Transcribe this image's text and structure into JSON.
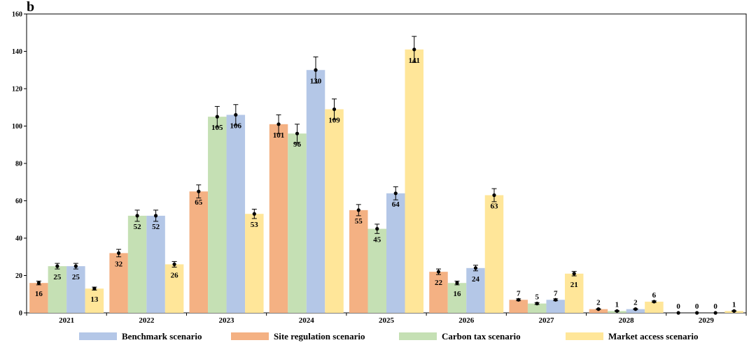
{
  "chart_data": {
    "type": "bar",
    "panel_label": "b",
    "categories": [
      "2021",
      "2022",
      "2023",
      "2024",
      "2025",
      "2026",
      "2027",
      "2028",
      "2029"
    ],
    "ylim": [
      0,
      160
    ],
    "yticks": [
      0,
      20,
      40,
      60,
      80,
      100,
      120,
      140,
      160
    ],
    "y_tick_labels": [
      "0",
      "20",
      "40",
      "60",
      "80",
      "100",
      "120",
      "140",
      "160"
    ],
    "grid": false,
    "legend_position": "bottom",
    "series": [
      {
        "name": "Site regulation scenario",
        "color": "#f4b183",
        "values": [
          16,
          32,
          65,
          101,
          55,
          22,
          7,
          2,
          0
        ],
        "labels": [
          "16",
          "32",
          "65",
          "101",
          "55",
          "22",
          "7",
          "2",
          "0"
        ],
        "errors": [
          1,
          2,
          3.5,
          5,
          3,
          1.5,
          0.5,
          0.2,
          0
        ]
      },
      {
        "name": "Carbon tax scenario",
        "color": "#c5e0b4",
        "values": [
          25,
          52,
          105,
          96,
          45,
          16,
          5,
          1,
          0
        ],
        "labels": [
          "25",
          "52",
          "105",
          "96",
          "45",
          "16",
          "5",
          "1",
          "0"
        ],
        "errors": [
          1.5,
          3,
          5.5,
          5,
          2.5,
          1,
          0.5,
          0.2,
          0
        ]
      },
      {
        "name": "Benchmark scenario",
        "color": "#b4c7e7",
        "values": [
          25,
          52,
          106,
          130,
          64,
          24,
          7,
          2,
          0
        ],
        "labels": [
          "25",
          "52",
          "106",
          "130",
          "64",
          "24",
          "7",
          "2",
          "0"
        ],
        "errors": [
          1.5,
          3,
          5.5,
          7,
          3.5,
          1.5,
          0.5,
          0.3,
          0
        ]
      },
      {
        "name": "Market access scenario",
        "color": "#ffe699",
        "values": [
          13,
          26,
          53,
          109,
          141,
          63,
          21,
          6,
          1
        ],
        "labels": [
          "13",
          "26",
          "53",
          "109",
          "141",
          "63",
          "21",
          "6",
          "1"
        ],
        "errors": [
          0.8,
          1.5,
          2.5,
          5.5,
          7,
          3.5,
          1.2,
          0.4,
          0.1
        ]
      }
    ],
    "legend": [
      {
        "name": "Benchmark scenario",
        "color": "#b4c7e7"
      },
      {
        "name": "Site regulation scenario",
        "color": "#f4b183"
      },
      {
        "name": "Carbon tax scenario",
        "color": "#c5e0b4"
      },
      {
        "name": "Market access scenario",
        "color": "#ffe699"
      }
    ]
  }
}
